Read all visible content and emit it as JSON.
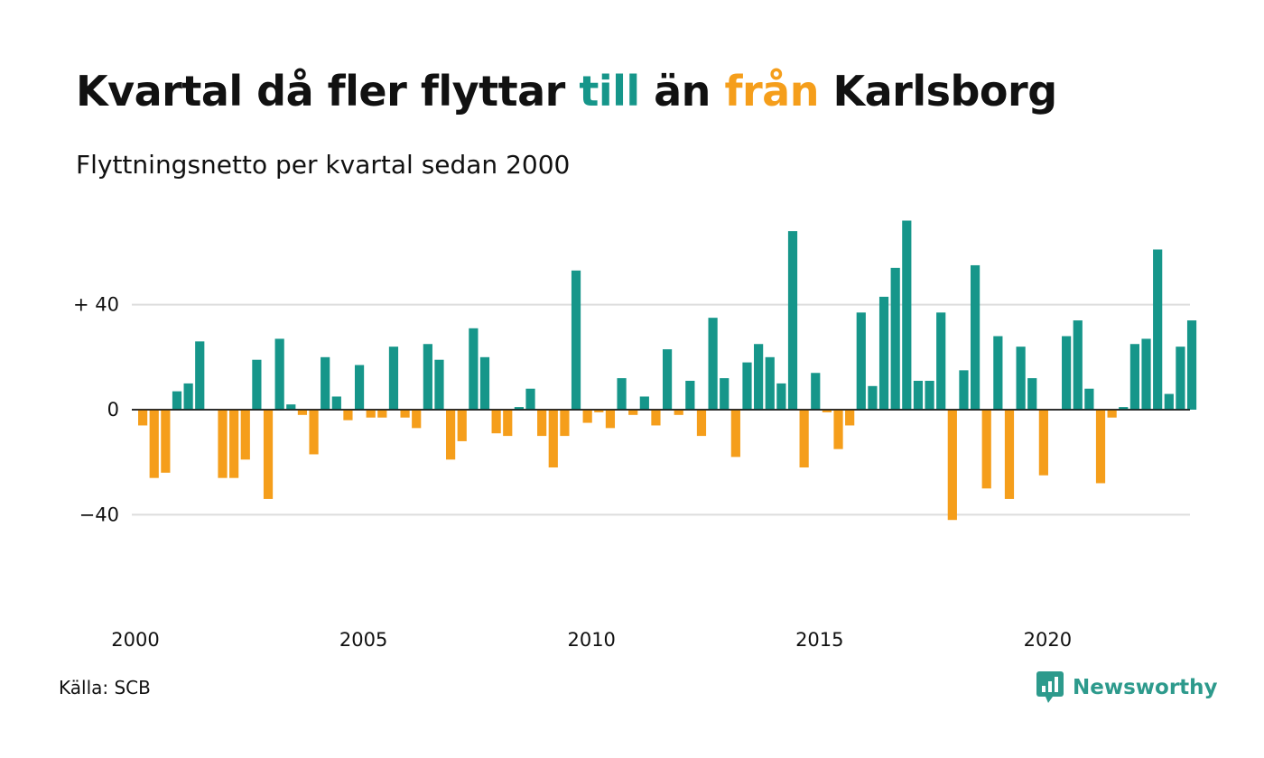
{
  "header": {
    "title_part1": "Kvartal då fler flyttar ",
    "title_till": "till",
    "title_part2": " än ",
    "title_fran": "från",
    "title_part3": " Karlsborg",
    "subtitle": "Flyttningsnetto per kvartal sedan 2000"
  },
  "footer": {
    "source": "Källa: SCB",
    "brand": "Newsworthy"
  },
  "colors": {
    "positive": "#16968a",
    "negative": "#f59e1b",
    "grid": "#dddddd",
    "baseline": "#111111",
    "brand": "#2d9a8c"
  },
  "icons": {
    "brand_logo": "chart-bubble-icon"
  },
  "chart_data": {
    "type": "bar",
    "title": "Kvartal då fler flyttar till än från Karlsborg",
    "subtitle": "Flyttningsnetto per kvartal sedan 2000",
    "xlabel": "",
    "ylabel": "",
    "ylim": [
      -80,
      80
    ],
    "y_ticks": [
      {
        "value": 40,
        "label": "+ 40"
      },
      {
        "value": 0,
        "label": "0"
      },
      {
        "value": -40,
        "label": "−40"
      }
    ],
    "x_ticks": [
      {
        "value": 2000,
        "label": "2000"
      },
      {
        "value": 2005,
        "label": "2005"
      },
      {
        "value": 2010,
        "label": "2010"
      },
      {
        "value": 2015,
        "label": "2015"
      },
      {
        "value": 2020,
        "label": "2020"
      }
    ],
    "grid": true,
    "legend": "none",
    "start_quarter": "2000 K1",
    "values": [
      -6,
      -26,
      -24,
      7,
      10,
      26,
      0,
      -26,
      -26,
      -19,
      19,
      -34,
      27,
      2,
      -2,
      -17,
      20,
      5,
      -4,
      17,
      -3,
      -3,
      24,
      -3,
      -7,
      25,
      19,
      -19,
      -12,
      31,
      20,
      -9,
      -10,
      1,
      8,
      -10,
      -22,
      -10,
      53,
      -5,
      -1,
      -7,
      12,
      -2,
      5,
      -6,
      23,
      -2,
      11,
      -10,
      35,
      12,
      -18,
      18,
      25,
      20,
      10,
      68,
      -22,
      14,
      -1,
      -15,
      -6,
      37,
      9,
      43,
      54,
      72,
      11,
      11,
      37,
      -42,
      15,
      55,
      -30,
      28,
      -34,
      24,
      12,
      -25,
      0,
      28,
      34,
      8,
      -28,
      -3,
      1,
      25,
      27,
      61,
      6,
      24,
      34
    ]
  }
}
